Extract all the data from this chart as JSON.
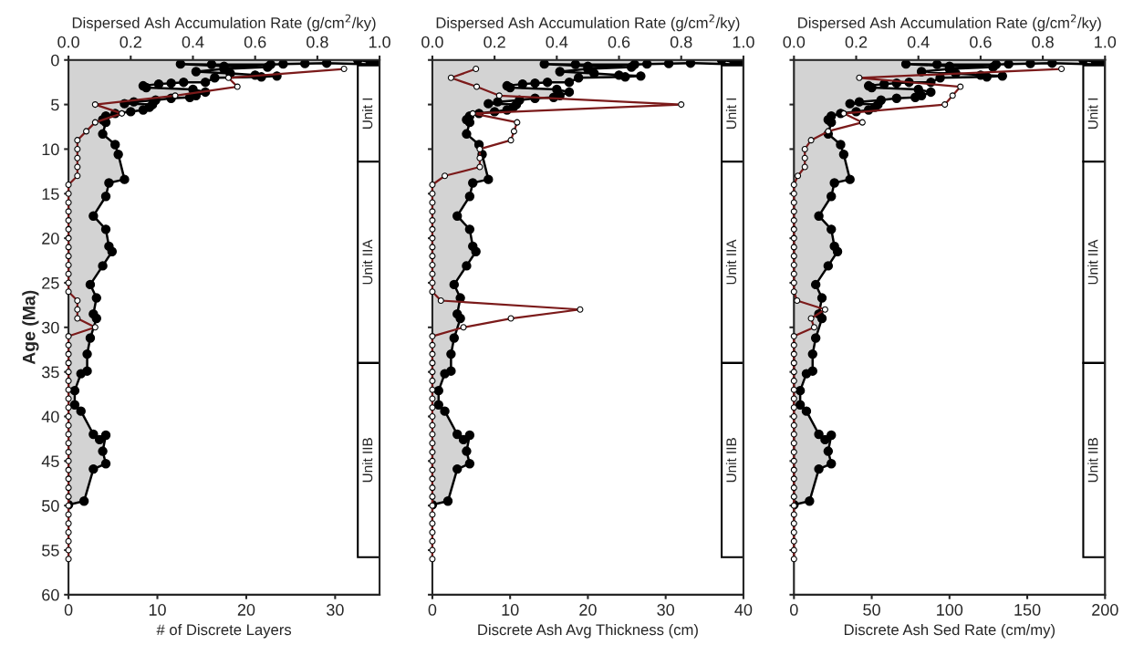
{
  "chart_data": [
    {
      "type": "line",
      "orientation": "horizontal",
      "ylabel": "Age (Ma)",
      "xlabel": "# of Discrete Layers",
      "x2label": "Dispersed Ash Accumulation Rate (g/cm$^{2}$/ky)",
      "ylim": [
        60,
        0
      ],
      "yticks": [
        0,
        5,
        10,
        15,
        20,
        25,
        30,
        35,
        40,
        45,
        50,
        55,
        60
      ],
      "xlim": [
        0,
        35
      ],
      "xticks": [
        0,
        10,
        20,
        30
      ],
      "x2lim": [
        0,
        1
      ],
      "x2ticks": [
        {
          "value": 0,
          "label": "0.0"
        },
        {
          "value": 0.2,
          "label": "0.2"
        },
        {
          "value": 0.4,
          "label": "0.4"
        },
        {
          "value": 0.6,
          "label": "0.6"
        },
        {
          "value": 0.8,
          "label": "0.8"
        },
        {
          "value": 1,
          "label": "1.0"
        }
      ],
      "grid": false,
      "marker": "circle",
      "bands": [
        {
          "axis": "y",
          "from": 0.6,
          "to": 11.4,
          "label": "Unit I"
        },
        {
          "axis": "y",
          "from": 11.4,
          "to": 34,
          "label": "Unit IIA"
        },
        {
          "axis": "y",
          "from": 34,
          "to": 55.8,
          "label": "Unit IIB"
        }
      ],
      "series": [
        {
          "type": "area",
          "axis": "x2",
          "color": "#000000",
          "x": [
            0.0,
            0.2,
            0.5,
            0.35,
            0.4,
            0.45,
            0.5,
            0.5,
            0.45,
            0.7,
            0.8,
            1.0,
            1.3,
            1.5,
            1.7,
            1.8,
            1.9,
            2.0,
            2.5,
            2.5,
            2.6,
            2.7,
            2.9,
            3.1,
            3.3,
            3.6,
            4.0,
            4.2,
            4.3,
            4.5,
            4.7,
            4.9,
            5.0,
            5.3,
            5.6,
            5.8,
            6.0,
            6.3,
            6.7,
            7.0,
            8.3,
            9.5,
            10.6,
            13.4,
            13.8,
            15.3,
            17.5,
            19.0,
            20.9,
            21.5,
            23.1,
            25.2,
            26.7,
            28.5,
            29.0,
            31.2,
            33.0,
            34.9,
            35.2,
            37.1,
            38.7,
            39.4,
            42.0,
            42.6,
            42.1,
            43.9,
            45.3,
            45.9,
            49.5,
            49.9
          ],
          "values": [
            0.93,
            0.97,
            0.99,
            0.83,
            0.76,
            0.69,
            0.65,
            0.46,
            0.36,
            0.5,
            0.64,
            0.5,
            0.41,
            0.52,
            0.6,
            0.67,
            0.62,
            0.47,
            0.44,
            0.37,
            0.33,
            0.29,
            0.24,
            0.25,
            0.4,
            0.44,
            0.41,
            0.39,
            0.33,
            0.28,
            0.21,
            0.18,
            0.27,
            0.26,
            0.24,
            0.2,
            0.15,
            0.12,
            0.11,
            0.12,
            0.11,
            0.15,
            0.16,
            0.18,
            0.13,
            0.12,
            0.08,
            0.12,
            0.13,
            0.14,
            0.11,
            0.07,
            0.09,
            0.08,
            0.09,
            0.07,
            0.06,
            0.06,
            0.04,
            0.02,
            0.02,
            0.04,
            0.08,
            0.1,
            0.12,
            0.11,
            0.12,
            0.08,
            0.05,
            0.0
          ]
        },
        {
          "color": "#7b1a1a",
          "x": [
            1,
            2,
            3,
            4,
            5,
            6,
            7,
            8,
            9,
            10,
            11,
            12,
            13,
            14,
            15,
            16,
            17,
            18,
            19,
            20,
            21,
            22,
            23,
            24,
            25,
            26,
            27,
            28,
            29,
            30,
            31,
            32,
            33,
            34,
            35,
            36,
            37,
            38,
            39,
            40,
            41,
            42,
            43,
            44,
            45,
            46,
            47,
            48,
            49,
            50,
            51,
            52,
            53,
            54,
            55,
            56
          ],
          "values": [
            31,
            18,
            19,
            12,
            3,
            6,
            3,
            2,
            1,
            1,
            1,
            1,
            1,
            0,
            0,
            0,
            0,
            0,
            0,
            0,
            0,
            0,
            0,
            0,
            0,
            0,
            1,
            1,
            1,
            3,
            0,
            0,
            0,
            0,
            0,
            0,
            0,
            0,
            0,
            0,
            0,
            0,
            0,
            0,
            0,
            0,
            0,
            0,
            0,
            0,
            0,
            0,
            0,
            0,
            0,
            0
          ]
        }
      ]
    },
    {
      "type": "line",
      "orientation": "horizontal",
      "xlabel": "Discrete Ash Avg Thickness (cm)",
      "x2label": "Dispersed Ash Accumulation Rate (g/cm$^{2}$/ky)",
      "tick_labels": "x",
      "ylim": [
        60,
        0
      ],
      "yticks": [
        0,
        5,
        10,
        15,
        20,
        25,
        30,
        35,
        40,
        45,
        50,
        55,
        60
      ],
      "xlim": [
        0,
        40
      ],
      "xticks": [
        0,
        10,
        20,
        30,
        40
      ],
      "x2lim": [
        0,
        1
      ],
      "x2ticks": [
        {
          "value": 0,
          "label": "0.0"
        },
        {
          "value": 0.2,
          "label": "0.2"
        },
        {
          "value": 0.4,
          "label": "0.4"
        },
        {
          "value": 0.6,
          "label": "0.6"
        },
        {
          "value": 0.8,
          "label": "0.8"
        },
        {
          "value": 1,
          "label": "1.0"
        }
      ],
      "grid": false,
      "marker": "circle",
      "bands": [
        {
          "axis": "y",
          "from": 0.6,
          "to": 11.4,
          "label": "Unit I"
        },
        {
          "axis": "y",
          "from": 11.4,
          "to": 34,
          "label": "Unit IIA"
        },
        {
          "axis": "y",
          "from": 34,
          "to": 55.8,
          "label": "Unit IIB"
        }
      ],
      "series": [
        {
          "type": "area",
          "axis": "x2",
          "color": "#000000",
          "x": [
            0.0,
            0.2,
            0.5,
            0.35,
            0.4,
            0.45,
            0.5,
            0.5,
            0.45,
            0.7,
            0.8,
            1.0,
            1.3,
            1.5,
            1.7,
            1.8,
            1.9,
            2.0,
            2.5,
            2.5,
            2.6,
            2.7,
            2.9,
            3.1,
            3.3,
            3.6,
            4.0,
            4.2,
            4.3,
            4.5,
            4.7,
            4.9,
            5.0,
            5.3,
            5.6,
            5.8,
            6.0,
            6.3,
            6.7,
            7.0,
            8.3,
            9.5,
            10.6,
            13.4,
            13.8,
            15.3,
            17.5,
            19.0,
            20.9,
            21.5,
            23.1,
            25.2,
            26.7,
            28.5,
            29.0,
            31.2,
            33.0,
            34.9,
            35.2,
            37.1,
            38.7,
            39.4,
            42.0,
            42.6,
            42.1,
            43.9,
            45.3,
            45.9,
            49.5,
            49.9
          ],
          "values": [
            0.93,
            0.97,
            0.99,
            0.83,
            0.76,
            0.69,
            0.65,
            0.46,
            0.36,
            0.5,
            0.64,
            0.5,
            0.41,
            0.52,
            0.6,
            0.67,
            0.62,
            0.47,
            0.44,
            0.37,
            0.33,
            0.29,
            0.24,
            0.25,
            0.4,
            0.44,
            0.41,
            0.39,
            0.33,
            0.28,
            0.21,
            0.18,
            0.27,
            0.26,
            0.24,
            0.2,
            0.15,
            0.12,
            0.11,
            0.12,
            0.11,
            0.15,
            0.16,
            0.18,
            0.13,
            0.12,
            0.08,
            0.12,
            0.13,
            0.14,
            0.11,
            0.07,
            0.09,
            0.08,
            0.09,
            0.07,
            0.06,
            0.06,
            0.04,
            0.02,
            0.02,
            0.04,
            0.08,
            0.1,
            0.12,
            0.11,
            0.12,
            0.08,
            0.05,
            0.0
          ]
        },
        {
          "color": "#7b1a1a",
          "x": [
            1,
            2,
            3,
            4,
            5,
            6,
            7,
            8,
            9,
            10,
            11,
            12,
            13,
            14,
            15,
            16,
            17,
            18,
            19,
            20,
            21,
            22,
            23,
            24,
            25,
            26,
            27,
            28,
            29,
            30,
            31,
            32,
            33,
            34,
            35,
            36,
            37,
            38,
            39,
            40,
            41,
            42,
            43,
            44,
            45,
            46,
            47,
            48,
            49,
            50,
            51,
            52,
            53,
            54,
            55,
            56
          ],
          "values": [
            5.6,
            2.4,
            5.7,
            8.6,
            32,
            5.2,
            10.9,
            10.5,
            10.1,
            6.1,
            6.1,
            6.1,
            1.6,
            0,
            0,
            0,
            0,
            0,
            0,
            0,
            0,
            0,
            0,
            0,
            0,
            0,
            1.1,
            19,
            10.1,
            4,
            0,
            0,
            0,
            0,
            0,
            0,
            0,
            0,
            0,
            0,
            0,
            0,
            0,
            0,
            0,
            0,
            0,
            0,
            0,
            0,
            0,
            0,
            0,
            0,
            0,
            0
          ]
        }
      ]
    },
    {
      "type": "line",
      "orientation": "horizontal",
      "xlabel": "Discrete Ash Sed Rate (cm/my)",
      "x2label": "Dispersed Ash Accumulation Rate (g/cm$^{2}$/ky)",
      "tick_labels": "x",
      "ylim": [
        60,
        0
      ],
      "yticks": [
        0,
        5,
        10,
        15,
        20,
        25,
        30,
        35,
        40,
        45,
        50,
        55,
        60
      ],
      "xlim": [
        0,
        200
      ],
      "xticks": [
        0,
        50,
        100,
        150,
        200
      ],
      "x2lim": [
        0,
        1
      ],
      "x2ticks": [
        {
          "value": 0,
          "label": "0.0"
        },
        {
          "value": 0.2,
          "label": "0.2"
        },
        {
          "value": 0.4,
          "label": "0.4"
        },
        {
          "value": 0.6,
          "label": "0.6"
        },
        {
          "value": 0.8,
          "label": "0.8"
        },
        {
          "value": 1,
          "label": "1.0"
        }
      ],
      "grid": false,
      "marker": "circle",
      "bands": [
        {
          "axis": "y",
          "from": 0.6,
          "to": 11.4,
          "label": "Unit I"
        },
        {
          "axis": "y",
          "from": 11.4,
          "to": 34,
          "label": "Unit IIA"
        },
        {
          "axis": "y",
          "from": 34,
          "to": 55.8,
          "label": "Unit IIB"
        }
      ],
      "series": [
        {
          "type": "area",
          "axis": "x2",
          "color": "#000000",
          "x": [
            0.0,
            0.2,
            0.5,
            0.35,
            0.4,
            0.45,
            0.5,
            0.5,
            0.45,
            0.7,
            0.8,
            1.0,
            1.3,
            1.5,
            1.7,
            1.8,
            1.9,
            2.0,
            2.5,
            2.5,
            2.6,
            2.7,
            2.9,
            3.1,
            3.3,
            3.6,
            4.0,
            4.2,
            4.3,
            4.5,
            4.7,
            4.9,
            5.0,
            5.3,
            5.6,
            5.8,
            6.0,
            6.3,
            6.7,
            7.0,
            8.3,
            9.5,
            10.6,
            13.4,
            13.8,
            15.3,
            17.5,
            19.0,
            20.9,
            21.5,
            23.1,
            25.2,
            26.7,
            28.5,
            29.0,
            31.2,
            33.0,
            34.9,
            35.2,
            37.1,
            38.7,
            39.4,
            42.0,
            42.6,
            42.1,
            43.9,
            45.3,
            45.9,
            49.5,
            49.9
          ],
          "values": [
            0.93,
            0.97,
            0.99,
            0.83,
            0.76,
            0.69,
            0.65,
            0.46,
            0.36,
            0.5,
            0.64,
            0.5,
            0.41,
            0.52,
            0.6,
            0.67,
            0.62,
            0.47,
            0.44,
            0.37,
            0.33,
            0.29,
            0.24,
            0.25,
            0.4,
            0.44,
            0.41,
            0.39,
            0.33,
            0.28,
            0.21,
            0.18,
            0.27,
            0.26,
            0.24,
            0.2,
            0.15,
            0.12,
            0.11,
            0.12,
            0.11,
            0.15,
            0.16,
            0.18,
            0.13,
            0.12,
            0.08,
            0.12,
            0.13,
            0.14,
            0.11,
            0.07,
            0.09,
            0.08,
            0.09,
            0.07,
            0.06,
            0.06,
            0.04,
            0.02,
            0.02,
            0.04,
            0.08,
            0.1,
            0.12,
            0.11,
            0.12,
            0.08,
            0.05,
            0.0
          ]
        },
        {
          "color": "#7b1a1a",
          "x": [
            1,
            2,
            3,
            4,
            5,
            6,
            7,
            8,
            9,
            10,
            11,
            12,
            13,
            14,
            15,
            16,
            17,
            18,
            19,
            20,
            21,
            22,
            23,
            24,
            25,
            26,
            27,
            28,
            29,
            30,
            31,
            32,
            33,
            34,
            35,
            36,
            37,
            38,
            39,
            40,
            41,
            42,
            43,
            44,
            45,
            46,
            47,
            48,
            49,
            50,
            51,
            52,
            53,
            54,
            55,
            56
          ],
          "values": [
            172,
            42,
            107,
            102,
            97,
            32,
            44,
            22,
            11,
            7,
            7,
            7,
            2.5,
            0,
            0,
            0,
            0,
            0,
            0,
            0,
            0,
            0,
            0,
            0,
            0,
            0,
            2,
            20,
            11,
            13,
            0,
            0,
            0,
            0,
            0,
            0,
            0,
            0,
            0,
            0,
            0,
            0,
            0,
            0,
            0,
            0,
            0,
            0,
            0,
            0,
            0,
            0,
            0,
            0,
            0,
            0
          ]
        }
      ]
    }
  ]
}
